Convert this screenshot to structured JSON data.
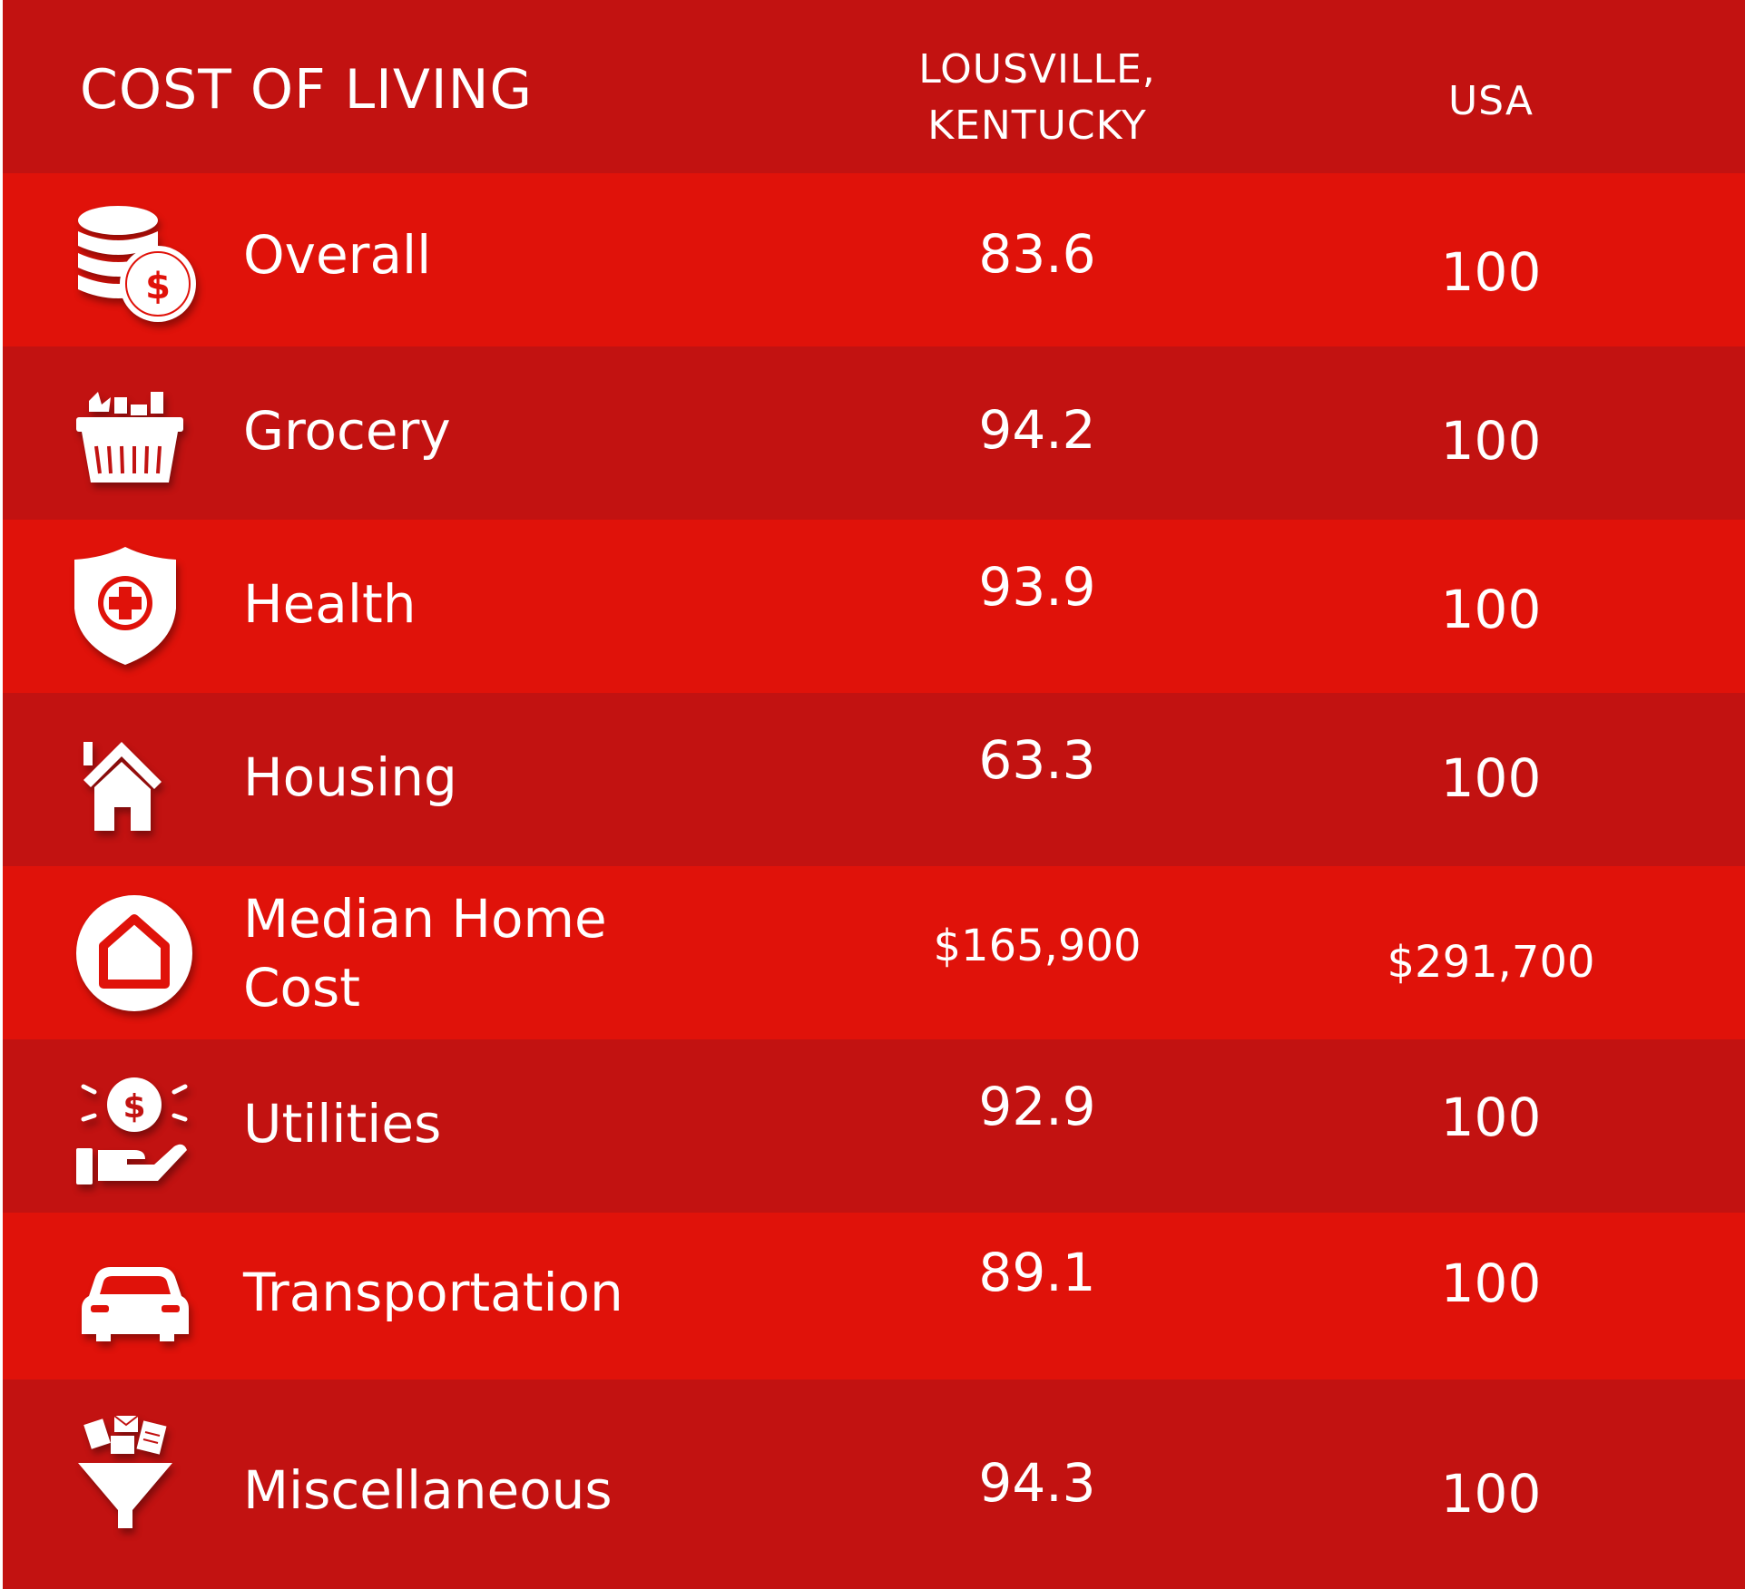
{
  "header": {
    "title": "COST OF LIVING",
    "col_local": "LOUSVILLE, KENTUCKY",
    "col_local_line1": "LOUSVILLE,",
    "col_local_line2": "KENTUCKY",
    "col_usa": "USA"
  },
  "rows": [
    {
      "label": "Overall",
      "local": "83.6",
      "usa": "100",
      "icon": "coins-dollar-icon"
    },
    {
      "label": "Grocery",
      "local": "94.2",
      "usa": "100",
      "icon": "grocery-basket-icon"
    },
    {
      "label": "Health",
      "local": "93.9",
      "usa": "100",
      "icon": "health-shield-icon"
    },
    {
      "label": "Housing",
      "local": "63.3",
      "usa": "100",
      "icon": "house-icon"
    },
    {
      "label": "Median Home Cost",
      "label_line1": "Median Home",
      "label_line2": "Cost",
      "local": "$165,900",
      "usa": "$291,700",
      "icon": "home-circle-icon"
    },
    {
      "label": "Utilities",
      "local": "92.9",
      "usa": "100",
      "icon": "hand-coin-icon"
    },
    {
      "label": "Transportation",
      "local": "89.1",
      "usa": "100",
      "icon": "car-icon"
    },
    {
      "label": "Miscellaneous",
      "local": "94.3",
      "usa": "100",
      "icon": "funnel-media-icon"
    }
  ],
  "colors": {
    "row_dark": "#c21211",
    "row_light": "#e0120a",
    "text": "#ffffff"
  }
}
